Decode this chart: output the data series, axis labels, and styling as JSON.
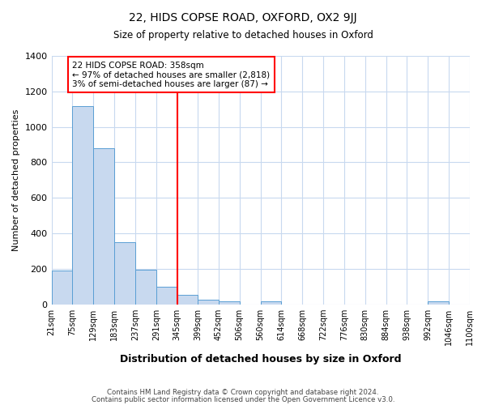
{
  "title": "22, HIDS COPSE ROAD, OXFORD, OX2 9JJ",
  "subtitle": "Size of property relative to detached houses in Oxford",
  "xlabel": "Distribution of detached houses by size in Oxford",
  "ylabel": "Number of detached properties",
  "bin_labels": [
    "21sqm",
    "75sqm",
    "129sqm",
    "183sqm",
    "237sqm",
    "291sqm",
    "345sqm",
    "399sqm",
    "452sqm",
    "506sqm",
    "560sqm",
    "614sqm",
    "668sqm",
    "722sqm",
    "776sqm",
    "830sqm",
    "884sqm",
    "938sqm",
    "992sqm",
    "1046sqm",
    "1100sqm"
  ],
  "bar_values": [
    190,
    1115,
    880,
    350,
    195,
    100,
    55,
    25,
    18,
    0,
    15,
    0,
    0,
    0,
    0,
    0,
    0,
    0,
    15,
    0
  ],
  "bin_edges": [
    21,
    75,
    129,
    183,
    237,
    291,
    345,
    399,
    452,
    506,
    560,
    614,
    668,
    722,
    776,
    830,
    884,
    938,
    992,
    1046,
    1100
  ],
  "bar_color": "#c8d9ef",
  "bar_edge_color": "#5a9fd4",
  "vline_x": 345,
  "annotation_title": "22 HIDS COPSE ROAD: 358sqm",
  "annotation_line1": "← 97% of detached houses are smaller (2,818)",
  "annotation_line2": "3% of semi-detached houses are larger (87) →",
  "vline_color": "red",
  "ylim": [
    0,
    1400
  ],
  "yticks": [
    0,
    200,
    400,
    600,
    800,
    1000,
    1200,
    1400
  ],
  "footnote1": "Contains HM Land Registry data © Crown copyright and database right 2024.",
  "footnote2": "Contains public sector information licensed under the Open Government Licence v3.0.",
  "background_color": "#ffffff",
  "grid_color": "#c8d9ef"
}
